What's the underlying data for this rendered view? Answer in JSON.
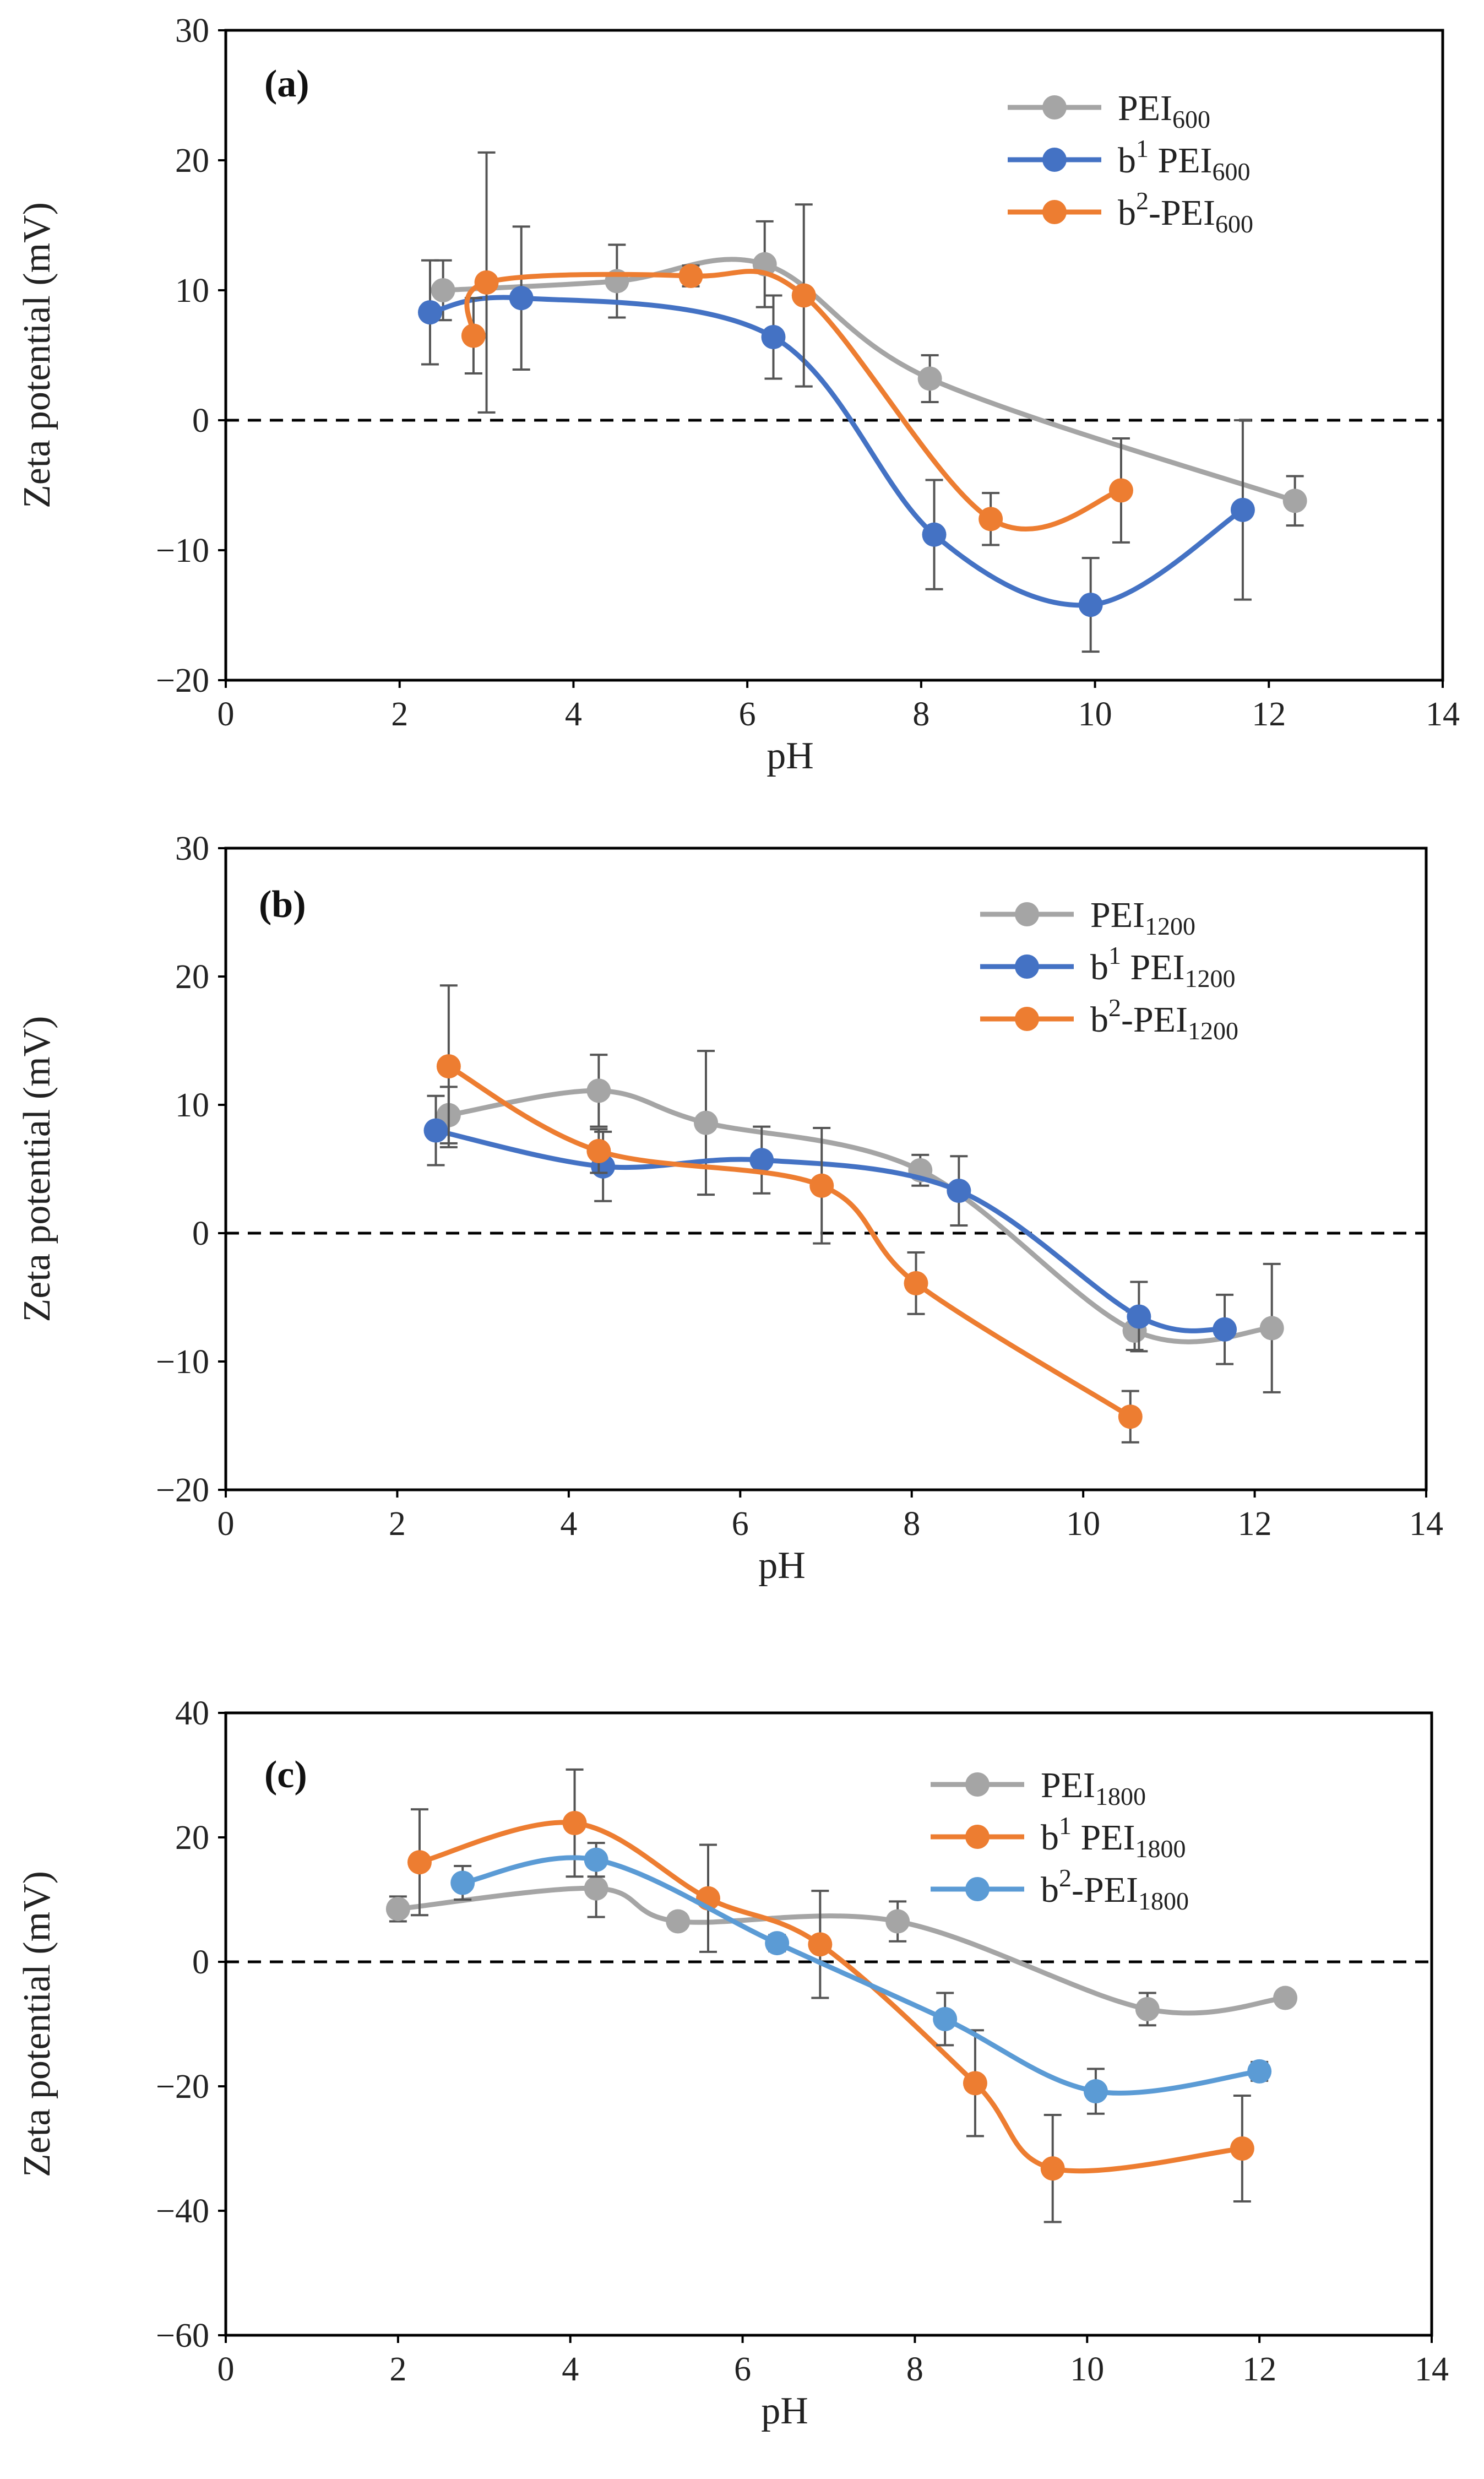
{
  "chart_data": [
    {
      "type": "scatter",
      "panel": "(a)",
      "xlabel": "pH",
      "ylabel": "Zeta potential (mV)",
      "xlim": [
        0,
        14
      ],
      "ylim": [
        -20,
        30
      ],
      "xticks": [
        0,
        2,
        4,
        6,
        8,
        10,
        12,
        14
      ],
      "yticks": [
        -20,
        -10,
        0,
        10,
        20,
        30
      ],
      "ytick_labels": [
        "−20",
        "−10",
        "0",
        "10",
        "20",
        "30"
      ],
      "zero_line": true,
      "legend_position": "top-right",
      "series": [
        {
          "name": "PEI",
          "sub": "600",
          "sup": "",
          "color": "#A5A5A5",
          "x": [
            2.5,
            4.5,
            6.2,
            8.1,
            12.3
          ],
          "y": [
            10,
            10.7,
            12,
            3.2,
            -6.2
          ],
          "err": [
            2.3,
            2.8,
            3.3,
            1.8,
            1.9
          ]
        },
        {
          "name": "b PEI",
          "sub": "600",
          "sup": "1",
          "color": "#4472C4",
          "x": [
            2.35,
            3.4,
            6.3,
            8.15,
            9.95,
            11.7
          ],
          "y": [
            8.3,
            9.4,
            6.4,
            -8.8,
            -14.2,
            -6.9
          ],
          "err": [
            4.0,
            5.5,
            3.2,
            4.2,
            3.6,
            6.9
          ]
        },
        {
          "name": "b",
          "sub": "600",
          "sup": "2",
          "name2": "-PEI",
          "color": "#ED7D31",
          "x": [
            2.85,
            3.0,
            5.35,
            6.65,
            8.8,
            10.3
          ],
          "y": [
            6.5,
            10.6,
            11.1,
            9.6,
            -7.6,
            -5.4
          ],
          "err": [
            2.9,
            10.0,
            0.8,
            7.0,
            2.0,
            4.0
          ]
        }
      ]
    },
    {
      "type": "scatter",
      "panel": "(b)",
      "xlabel": "pH",
      "ylabel": "Zeta potential (mV)",
      "xlim": [
        0,
        14
      ],
      "ylim": [
        -20,
        30
      ],
      "xticks": [
        0,
        2,
        4,
        6,
        8,
        10,
        12,
        14
      ],
      "yticks": [
        -20,
        -10,
        0,
        10,
        20,
        30
      ],
      "ytick_labels": [
        "−20",
        "−10",
        "0",
        "10",
        "20",
        "30"
      ],
      "zero_line": true,
      "legend_position": "top-right",
      "series": [
        {
          "name": "PEI",
          "sub": "1200",
          "sup": "",
          "color": "#A5A5A5",
          "x": [
            2.6,
            4.35,
            5.6,
            8.1,
            10.6,
            12.2
          ],
          "y": [
            9.2,
            11.1,
            8.6,
            4.9,
            -7.6,
            -7.4
          ],
          "err": [
            2.2,
            2.8,
            5.6,
            1.2,
            1.5,
            5.0
          ]
        },
        {
          "name": "b PEI",
          "sub": "1200",
          "sup": "1",
          "color": "#4472C4",
          "x": [
            2.45,
            4.4,
            6.25,
            8.55,
            10.65,
            11.65
          ],
          "y": [
            8.0,
            5.2,
            5.7,
            3.3,
            -6.5,
            -7.5
          ],
          "err": [
            2.7,
            2.7,
            2.6,
            2.7,
            2.7,
            2.7
          ]
        },
        {
          "name": "b",
          "sub": "1200",
          "sup": "2",
          "name2": "-PEI",
          "color": "#ED7D31",
          "x": [
            2.6,
            4.35,
            6.95,
            8.05,
            10.55
          ],
          "y": [
            13.0,
            6.4,
            3.7,
            -3.9,
            -14.3
          ],
          "err": [
            6.3,
            1.7,
            4.5,
            2.4,
            2.0
          ]
        }
      ]
    },
    {
      "type": "scatter",
      "panel": "(c)",
      "xlabel": "pH",
      "ylabel": "Zeta potential (mV)",
      "xlim": [
        0,
        14
      ],
      "ylim": [
        -60,
        40
      ],
      "xticks": [
        0,
        2,
        4,
        6,
        8,
        10,
        12,
        14
      ],
      "yticks": [
        -60,
        -40,
        -20,
        0,
        20,
        40
      ],
      "ytick_labels": [
        "−60",
        "−40",
        "−20",
        "0",
        "20",
        "40"
      ],
      "zero_line": true,
      "legend_position": "top-right",
      "series": [
        {
          "name": "PEI",
          "sub": "1800",
          "sup": "",
          "color": "#A5A5A5",
          "x": [
            2.0,
            4.3,
            5.25,
            7.8,
            10.7,
            12.3
          ],
          "y": [
            8.5,
            11.8,
            6.5,
            6.5,
            -7.6,
            -5.8
          ],
          "err": [
            2.0,
            4.6,
            1.2,
            3.2,
            2.6,
            0.5
          ]
        },
        {
          "name": "b PEI",
          "sub": "1800",
          "sup": "1",
          "color": "#ED7D31",
          "x": [
            2.25,
            4.05,
            5.6,
            6.9,
            8.7,
            9.6,
            11.8
          ],
          "y": [
            16.0,
            22.3,
            10.2,
            2.8,
            -19.5,
            -33.2,
            -30.0
          ],
          "err": [
            8.5,
            8.6,
            8.6,
            8.6,
            8.5,
            8.6,
            8.5
          ]
        },
        {
          "name": "b",
          "sub": "1800",
          "sup": "2",
          "name2": "-PEI",
          "color": "#5B9BD5",
          "x": [
            2.75,
            4.3,
            6.4,
            8.35,
            10.1,
            12.0
          ],
          "y": [
            12.7,
            16.4,
            3.0,
            -9.2,
            -20.8,
            -17.6
          ],
          "err": [
            2.7,
            2.7,
            1.3,
            4.2,
            3.6,
            1.5
          ]
        }
      ]
    }
  ]
}
